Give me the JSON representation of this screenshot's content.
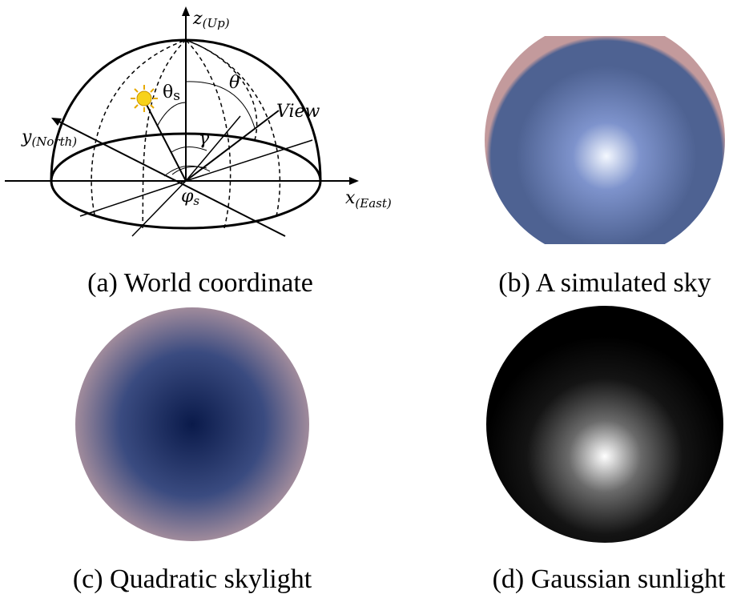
{
  "panels": {
    "a": {
      "caption": "(a) World coordinate",
      "labels": {
        "z_main": "z",
        "z_sub": "(Up)",
        "y_main": "y",
        "y_sub": "(North)",
        "x_main": "x",
        "x_sub": "(East)",
        "theta_s_main": "θ",
        "theta_s_sub": "s",
        "theta": "θ",
        "view": "View",
        "gamma": "γ",
        "phi_s_main": "φ",
        "phi_s_sub": "s"
      },
      "sun_color": "#f7d21b"
    },
    "b": {
      "caption": "(b) A simulated sky",
      "center_color": "#f4f8ff",
      "mid_color": "#7e93cc",
      "outer_color": "#4e6292",
      "rim_color": "#c39a9c"
    },
    "c": {
      "caption": "(c) Quadratic skylight",
      "center_color": "#0a1a4a",
      "mid_color": "#3a4b80",
      "rim_color": "#a8909e"
    },
    "d": {
      "caption": "(d) Gaussian sunlight",
      "center_color": "#ffffff",
      "outer_color": "#000000"
    }
  }
}
